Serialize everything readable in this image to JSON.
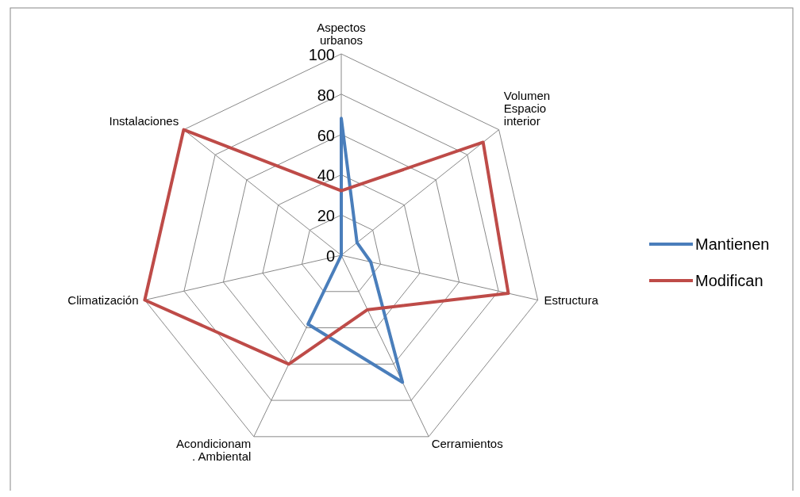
{
  "chart_data": {
    "type": "radar",
    "categories": [
      "Aspectos\nurbanos",
      "Volumen\nEspacio\ninterior",
      "Estructura",
      "Cerramientos",
      "Acondicionam\n. Ambiental",
      "Climatización",
      "Instalaciones"
    ],
    "series": [
      {
        "name": "Mantienen",
        "color": "#4a7ebb",
        "values": [
          68,
          10,
          15,
          70,
          38,
          0,
          0
        ]
      },
      {
        "name": "Modifican",
        "color": "#be4b48",
        "values": [
          32,
          90,
          85,
          30,
          60,
          100,
          100
        ]
      }
    ],
    "ylim": [
      0,
      100
    ],
    "yticks": [
      0,
      20,
      40,
      60,
      80,
      100
    ],
    "grid": true,
    "legend": "right",
    "marker": "none"
  }
}
